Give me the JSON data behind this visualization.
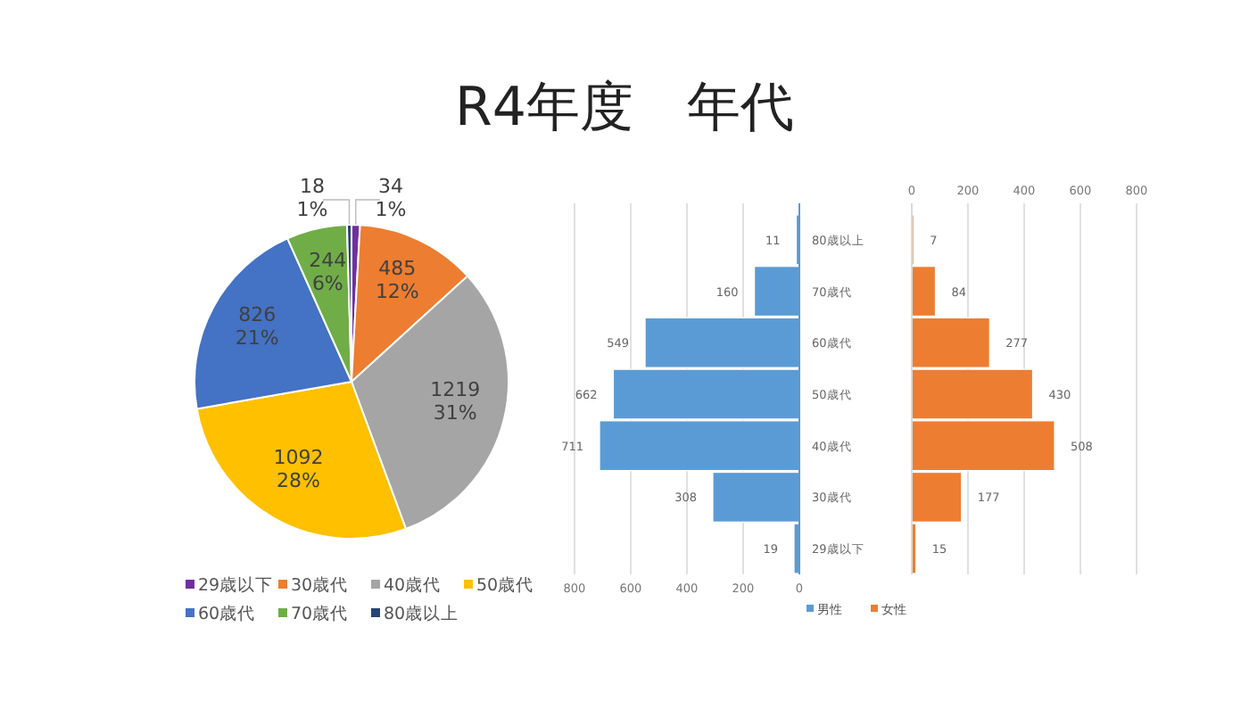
{
  "chart_data": [
    {
      "type": "pie",
      "categories": [
        "29歳以下",
        "30歳代",
        "40歳代",
        "50歳代",
        "60歳代",
        "70歳代",
        "80歳以上"
      ],
      "values": [
        34,
        485,
        1219,
        1092,
        826,
        244,
        18
      ],
      "colors": [
        "#7030a0",
        "#ed7d31",
        "#a5a5a5",
        "#ffc000",
        "#4472c4",
        "#70ad47",
        "#264478"
      ],
      "value_labels": [
        "34\n1%",
        "485\n12%",
        "1219\n31%",
        "1092\n28%",
        "826\n21%",
        "244\n6%",
        "18\n1%"
      ],
      "legend": "bottom"
    },
    {
      "type": "bar",
      "title": "R4年度　年代",
      "orientation": "horizontal",
      "categories": [
        "80歳以上",
        "70歳代",
        "60歳代",
        "50歳代",
        "40歳代",
        "30歳代",
        "29歳以下"
      ],
      "series": [
        {
          "name": "男性",
          "color": "#5b9bd5",
          "values": [
            11,
            160,
            549,
            662,
            711,
            308,
            19
          ]
        }
      ],
      "xlim": [
        800,
        0
      ],
      "xticks": [
        800,
        600,
        400,
        200,
        0
      ],
      "grid": "x",
      "data_labels": true,
      "legend": "bottom"
    },
    {
      "type": "bar",
      "orientation": "horizontal",
      "categories": [
        null,
        null,
        null,
        null,
        null,
        null,
        null
      ],
      "series": [
        {
          "name": "女性",
          "color": "#ed7d31",
          "values": [
            7,
            84,
            277,
            430,
            508,
            177,
            15
          ]
        }
      ],
      "xlim": [
        0,
        800
      ],
      "xticks": [
        0,
        200,
        400,
        600,
        800
      ],
      "grid": "x",
      "data_labels": true,
      "legend": "bottom",
      "tick_labels": "x"
    }
  ]
}
